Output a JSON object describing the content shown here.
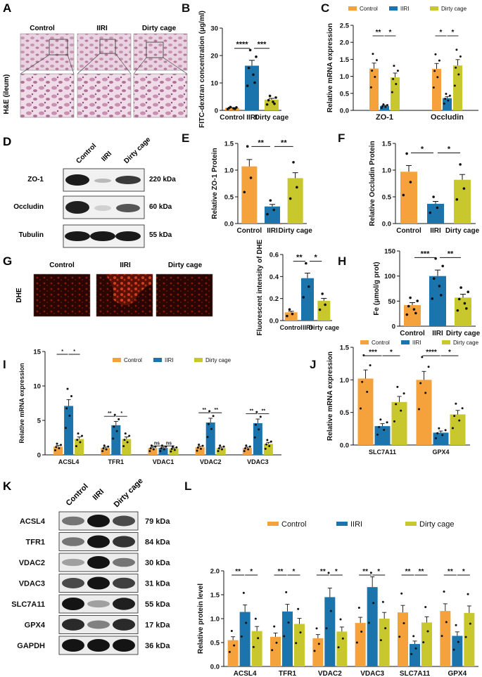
{
  "colors": {
    "control": "#f6a23c",
    "iiri": "#1c74ad",
    "dirty": "#c9c72e",
    "tissue": "#d9aec8",
    "dhe": "#a8200c"
  },
  "panels": {
    "A": {
      "letter": "A",
      "ylabel": "H&E (ileum)",
      "groups": [
        "Control",
        "IIRI",
        "Dirty cage"
      ]
    },
    "B": {
      "letter": "B"
    },
    "C": {
      "letter": "C"
    },
    "D": {
      "letter": "D",
      "groups": [
        "Control",
        "IIRI",
        "Dirty cage"
      ],
      "bands": [
        {
          "name": "ZO-1",
          "kda": "220 kDa"
        },
        {
          "name": "Occludin",
          "kda": "60 kDa"
        },
        {
          "name": "Tubulin",
          "kda": "55 kDa"
        }
      ]
    },
    "E": {
      "letter": "E"
    },
    "F": {
      "letter": "F"
    },
    "G": {
      "letter": "G",
      "ylabel": "DHE",
      "groups": [
        "Control",
        "IIRI",
        "Dirty cage"
      ]
    },
    "H": {
      "letter": "H"
    },
    "I": {
      "letter": "I"
    },
    "J": {
      "letter": "J"
    },
    "K": {
      "letter": "K",
      "groups": [
        "Control",
        "IIRI",
        "Dirty cage"
      ],
      "bands": [
        {
          "name": "ACSL4",
          "kda": "79 kDa"
        },
        {
          "name": "TFR1",
          "kda": "84 kDa"
        },
        {
          "name": "VDAC2",
          "kda": "30 kDa"
        },
        {
          "name": "VDAC3",
          "kda": "31 kDa"
        },
        {
          "name": "SLC7A11",
          "kda": "55 kDa"
        },
        {
          "name": "GPX4",
          "kda": "17 kDa"
        },
        {
          "name": "GAPDH",
          "kda": "36 kDa"
        }
      ]
    },
    "L": {
      "letter": "L"
    }
  },
  "chart_data": [
    {
      "id": "B",
      "type": "bar",
      "categories": [
        "Control",
        "IIRI",
        "Dirty cage"
      ],
      "series": [
        {
          "name": "value",
          "values": [
            0.9,
            16.3,
            3.9
          ]
        }
      ],
      "ylabel": "FITC-dextran concentration (μg/ml)",
      "ylim": [
        0,
        30
      ],
      "yticks": [
        "0",
        "10",
        "20",
        "30"
      ],
      "sig": [
        "****",
        "***"
      ]
    },
    {
      "id": "C",
      "type": "bar",
      "categories": [
        "ZO-1",
        "Occludin"
      ],
      "legend": [
        "Control",
        "IIRI",
        "Dirty cage"
      ],
      "series": [
        {
          "name": "Control",
          "values": [
            1.23,
            1.22
          ]
        },
        {
          "name": "IIRI",
          "values": [
            0.13,
            0.36
          ]
        },
        {
          "name": "Dirty cage",
          "values": [
            0.97,
            1.32
          ]
        }
      ],
      "ylabel": "Relative mRNA expression",
      "ylim": [
        0,
        2.5
      ],
      "yticks": [
        "0.0",
        "0.5",
        "1.0",
        "1.5",
        "2.0",
        "2.5"
      ],
      "sig": [
        "**",
        "*",
        "*",
        "*"
      ]
    },
    {
      "id": "E",
      "type": "bar",
      "categories": [
        "Control",
        "IIRI",
        "Dirty cage"
      ],
      "series": [
        {
          "name": "value",
          "values": [
            1.07,
            0.32,
            0.85
          ]
        }
      ],
      "ylabel": "Relative ZO-1 Protein",
      "ylim": [
        0,
        1.5
      ],
      "yticks": [
        "0.0",
        "0.5",
        "1.0",
        "1.5"
      ],
      "sig": [
        "**",
        "**"
      ]
    },
    {
      "id": "F",
      "type": "bar",
      "categories": [
        "Control",
        "IIRI",
        "Dirty cage"
      ],
      "series": [
        {
          "name": "value",
          "values": [
            0.97,
            0.37,
            0.82
          ]
        }
      ],
      "ylabel": "Relative Occludin  Protein",
      "ylim": [
        0,
        1.5
      ],
      "yticks": [
        "0.0",
        "0.5",
        "1.0",
        "1.5"
      ],
      "sig": [
        "*",
        "*"
      ]
    },
    {
      "id": "G",
      "type": "bar",
      "categories": [
        "Control",
        "IIRI",
        "Dirty cage"
      ],
      "series": [
        {
          "name": "value",
          "values": [
            0.075,
            0.385,
            0.18
          ]
        }
      ],
      "ylabel": "Fluorescent intensity of DHE",
      "ylim": [
        0,
        0.6
      ],
      "yticks": [
        "0.0",
        "0.2",
        "0.4",
        "0.6"
      ],
      "sig": [
        "**",
        "*"
      ]
    },
    {
      "id": "H",
      "type": "bar",
      "categories": [
        "Control",
        "IIRI",
        "Dirty cage"
      ],
      "series": [
        {
          "name": "value",
          "values": [
            42,
            100,
            57
          ]
        }
      ],
      "ylabel": "Fe (μmol/g prot)",
      "ylim": [
        0,
        150
      ],
      "yticks": [
        "0",
        "50",
        "100",
        "150"
      ],
      "sig": [
        "***",
        "**"
      ]
    },
    {
      "id": "I",
      "type": "bar",
      "categories": [
        "ACSL4",
        "TFR1",
        "VDAC1",
        "VDAC2",
        "VDAC3"
      ],
      "legend": [
        "Control",
        "IIRI",
        "Dirty cage"
      ],
      "series": [
        {
          "name": "Control",
          "values": [
            1.2,
            1.0,
            1.0,
            1.1,
            1.0
          ]
        },
        {
          "name": "IIRI",
          "values": [
            7.1,
            4.3,
            1.0,
            4.7,
            4.6
          ]
        },
        {
          "name": "Dirty cage",
          "values": [
            2.3,
            2.3,
            0.9,
            1.0,
            1.6
          ]
        }
      ],
      "ylabel": "Relative mRNA expression",
      "ylim": [
        0,
        15
      ],
      "yticks": [
        "0",
        "5",
        "10",
        "15"
      ],
      "sig": [
        "*",
        "*",
        "**",
        "*",
        "ns",
        "ns",
        "**",
        "**",
        "**",
        "**"
      ]
    },
    {
      "id": "J",
      "type": "bar",
      "categories": [
        "SLC7A11",
        "GPX4"
      ],
      "legend": [
        "Control",
        "IIRI",
        "Dirty cage"
      ],
      "series": [
        {
          "name": "Control",
          "values": [
            1.02,
            1.0
          ]
        },
        {
          "name": "IIRI",
          "values": [
            0.29,
            0.19
          ]
        },
        {
          "name": "Dirty cage",
          "values": [
            0.66,
            0.47
          ]
        }
      ],
      "ylabel": "Relative mRNA expression",
      "ylim": [
        0,
        1.5
      ],
      "yticks": [
        "0.0",
        "0.5",
        "1.0",
        "1.5"
      ],
      "sig": [
        "***",
        "*",
        "****",
        "*"
      ]
    },
    {
      "id": "L",
      "type": "bar",
      "categories": [
        "ACSL4",
        "TFR1",
        "VDAC2",
        "VDAC3",
        "SLC7A11",
        "GPX4"
      ],
      "legend": [
        "Control",
        "IIRI",
        "Dirty cage"
      ],
      "series": [
        {
          "name": "Control",
          "values": [
            0.55,
            0.62,
            0.59,
            0.91,
            1.13,
            1.16
          ]
        },
        {
          "name": "IIRI",
          "values": [
            1.14,
            1.15,
            1.45,
            1.66,
            0.47,
            0.64
          ]
        },
        {
          "name": "Dirty cage",
          "values": [
            0.74,
            0.89,
            0.73,
            1.0,
            0.92,
            1.12
          ]
        }
      ],
      "ylabel": "Relative protein level",
      "ylim": [
        0,
        2.0
      ],
      "yticks": [
        "0.0",
        "0.5",
        "1.0",
        "1.5",
        "2.0"
      ],
      "sig": [
        "**",
        "*",
        "**",
        "*",
        "**",
        "*",
        "**",
        "*",
        "**",
        "**",
        "**",
        "*"
      ]
    }
  ]
}
